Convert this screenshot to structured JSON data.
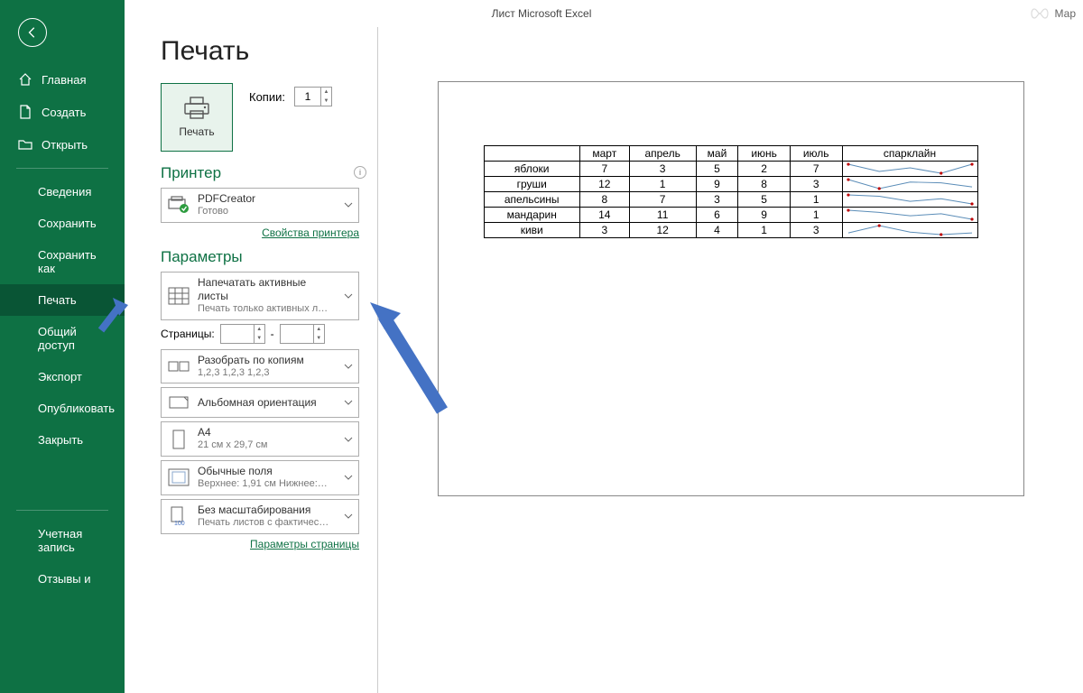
{
  "titlebar": {
    "title": "Лист Microsoft Excel",
    "user": "Мар"
  },
  "sidebar": {
    "home": "Главная",
    "new": "Создать",
    "open": "Открыть",
    "info": "Сведения",
    "save": "Сохранить",
    "saveas": "Сохранить как",
    "print": "Печать",
    "share": "Общий доступ",
    "export": "Экспорт",
    "publish": "Опубликовать",
    "close": "Закрыть",
    "account": "Учетная запись",
    "feedback": "Отзывы и"
  },
  "page": {
    "title": "Печать"
  },
  "print": {
    "button_label": "Печать",
    "copies_label": "Копии:",
    "copies_value": "1",
    "printer_section": "Принтер",
    "printer_name": "PDFCreator",
    "printer_status": "Готово",
    "printer_properties": "Свойства принтера",
    "settings_section": "Параметры",
    "pages_label": "Страницы:"
  },
  "settings": {
    "sheets": {
      "title": "Напечатать активные листы",
      "sub": "Печать только активных л…"
    },
    "collate": {
      "title": "Разобрать по копиям",
      "sub": "1,2,3    1,2,3    1,2,3"
    },
    "orientation": {
      "title": "Альбомная ориентация"
    },
    "paper": {
      "title": "A4",
      "sub": "21 см x 29,7 см"
    },
    "margins": {
      "title": "Обычные поля",
      "sub": "Верхнее: 1,91 см Нижнее:…"
    },
    "scaling": {
      "title": "Без масштабирования",
      "sub": "Печать листов с фактичес…"
    },
    "page_setup": "Параметры страницы"
  },
  "preview": {
    "columns": [
      "",
      "март",
      "апрель",
      "май",
      "июнь",
      "июль",
      "спарклайн"
    ],
    "rows": [
      {
        "label": "яблоки",
        "values": [
          7,
          3,
          5,
          2,
          7
        ]
      },
      {
        "label": "груши",
        "values": [
          12,
          1,
          9,
          8,
          3
        ]
      },
      {
        "label": "апельсины",
        "values": [
          8,
          7,
          3,
          5,
          1
        ]
      },
      {
        "label": "мандарин",
        "values": [
          14,
          11,
          6,
          9,
          1
        ]
      },
      {
        "label": "киви",
        "values": [
          3,
          12,
          4,
          1,
          3
        ]
      }
    ],
    "spark_color": "#5b8db8",
    "spark_marker_color": "#bf0000"
  },
  "colors": {
    "sidebar_bg": "#0e7144",
    "sidebar_active": "#095535",
    "accent": "#0e7144",
    "print_btn_bg": "#e8f3ec",
    "arrow": "#4472c4"
  }
}
